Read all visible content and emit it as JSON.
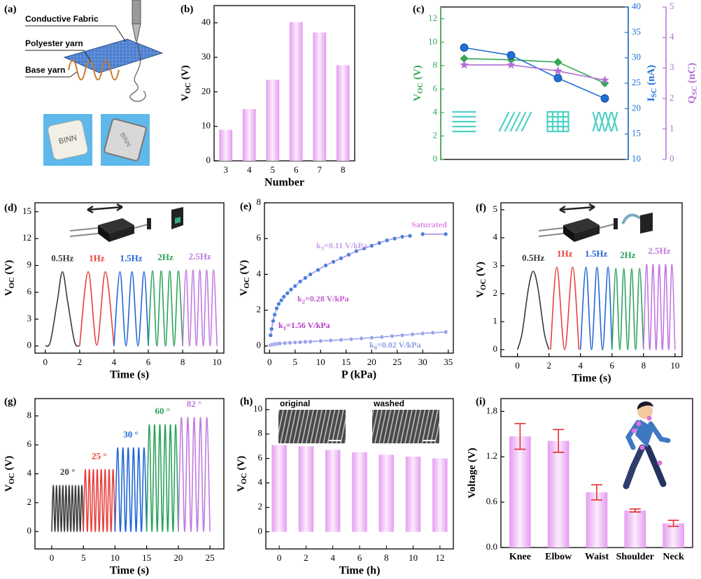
{
  "schematic": {
    "label": "(a)",
    "labels": [
      "Conductive Fabric",
      "Polyester yarn",
      "Base yarn"
    ],
    "photo_text": "BINN"
  },
  "chart_data": [
    {
      "label": "(b)",
      "type": "bar",
      "categories": [
        "3",
        "4",
        "5",
        "6",
        "7",
        "8"
      ],
      "values": [
        9,
        15,
        23.5,
        40.2,
        37.2,
        27.7
      ],
      "color": "#e49cf0",
      "ylim": [
        0,
        45
      ],
      "yticks": [
        0,
        10,
        20,
        30,
        40
      ],
      "xlabel": "Number",
      "ylabel": [
        "V",
        "OC",
        " (V)"
      ]
    },
    {
      "label": "(c)",
      "type": "line",
      "categories": [
        null,
        null,
        null,
        null
      ],
      "series": [
        {
          "values": [
            8.6,
            8.5,
            8.3,
            6.5
          ],
          "color": "#34a853",
          "marker": "diamond",
          "axis": "y"
        },
        {
          "values": [
            32,
            30.5,
            26,
            22
          ],
          "color": "#1f6fd6",
          "marker": "circle",
          "axis": "y2"
        },
        {
          "values": [
            3.1,
            3.1,
            2.9,
            2.6
          ],
          "color": "#b36ed6",
          "marker": "star",
          "axis": "y3"
        }
      ],
      "ylim": [
        0,
        13
      ],
      "yticks": [
        0,
        2,
        4,
        6,
        8,
        10,
        12
      ],
      "y2lim": [
        10,
        40
      ],
      "y2ticks": [
        10,
        15,
        20,
        25,
        30,
        35,
        40
      ],
      "y3lim": [
        0,
        5
      ],
      "y3ticks": [
        0,
        1,
        2,
        3,
        4,
        5
      ],
      "ylabel": [
        "V",
        "OC",
        " (V)"
      ],
      "y2label": [
        "I",
        "SC",
        " (nA)"
      ],
      "y3label": [
        "Q",
        "SC",
        " (nC)"
      ],
      "pattern_color": "#4fd1c5"
    },
    {
      "label": "(d)",
      "type": "line",
      "xlim": [
        -0.6,
        10.4
      ],
      "xticks": [
        0,
        2,
        4,
        6,
        8,
        10
      ],
      "ylim": [
        -0.8,
        16
      ],
      "yticks": [
        0,
        3,
        6,
        9,
        12,
        15
      ],
      "xlabel": "Time (s)",
      "ylabel": [
        "V",
        "OC",
        " (V)"
      ],
      "series": [
        {
          "name": "0.5Hz",
          "color": "#3a3a3a",
          "x": [
            0,
            0.3,
            0.7,
            1.0,
            1.3,
            1.7,
            2.0
          ],
          "values": [
            0,
            0.5,
            5,
            8.3,
            5,
            0.5,
            0
          ]
        },
        {
          "name": "1Hz",
          "color": "#e8413c",
          "x": [
            2.0,
            2.5,
            3.0,
            3.5,
            4.0
          ],
          "values": [
            0,
            8.3,
            0.1,
            8.3,
            0
          ]
        },
        {
          "name": "1.5Hz",
          "color": "#2166d6",
          "x": [
            4.0,
            4.35,
            4.7,
            5.05,
            5.4,
            5.75,
            6.0
          ],
          "values": [
            0,
            8.3,
            0,
            8.3,
            0,
            8.3,
            0
          ]
        },
        {
          "name": "2Hz",
          "color": "#2aa35a",
          "x": [
            6.0,
            6.25,
            6.5,
            6.75,
            7.0,
            7.25,
            7.5,
            7.75,
            8.0
          ],
          "values": [
            0,
            8.4,
            0,
            8.4,
            0,
            8.4,
            0,
            8.4,
            0
          ]
        },
        {
          "name": "2.5Hz",
          "color": "#c07ae0",
          "x": [
            8.0,
            8.2,
            8.4,
            8.6,
            8.8,
            9.0,
            9.2,
            9.4,
            9.6,
            9.8,
            10.0
          ],
          "values": [
            0,
            8.5,
            0,
            8.5,
            0,
            8.5,
            0,
            8.5,
            0,
            8.5,
            0
          ]
        }
      ]
    },
    {
      "label": "(e)",
      "type": "scatter",
      "xlim": [
        -1,
        36
      ],
      "xticks": [
        0,
        5,
        10,
        15,
        20,
        25,
        30,
        35
      ],
      "ylim": [
        -0.4,
        8
      ],
      "yticks": [
        0,
        2,
        4,
        6,
        8
      ],
      "xlabel": "P (kPa)",
      "ylabel": [
        "V",
        "OC",
        " (V)"
      ],
      "series": [
        {
          "color": "#4a7fd8",
          "line_color": "#a98ae8",
          "x": [
            0.2,
            0.4,
            0.7,
            1.0,
            1.4,
            1.8,
            2.3,
            2.8,
            3.5,
            4.2,
            5,
            6,
            7,
            8,
            9.5,
            11,
            12.5,
            14,
            15.5,
            17,
            18.5,
            20,
            21.5,
            23,
            24.5,
            26,
            27.5,
            null,
            30,
            34.5
          ],
          "values": [
            0.6,
            0.95,
            1.4,
            1.75,
            2.1,
            2.35,
            2.55,
            2.75,
            2.95,
            3.15,
            3.35,
            3.6,
            3.8,
            4.0,
            4.25,
            4.5,
            4.7,
            4.9,
            5.1,
            5.3,
            5.45,
            5.6,
            5.75,
            5.9,
            6.0,
            6.1,
            6.15,
            null,
            6.25,
            6.25
          ]
        },
        {
          "color": "#9aa4ee",
          "line_color": "#8f9de8",
          "x": [
            0.2,
            0.6,
            1,
            1.5,
            2,
            3,
            4,
            5,
            6,
            7,
            8,
            10,
            12,
            14,
            16,
            18,
            20,
            22,
            24,
            26,
            28,
            30,
            32,
            34.5
          ],
          "values": [
            0.05,
            0.08,
            0.1,
            0.12,
            0.14,
            0.16,
            0.18,
            0.2,
            0.21,
            0.23,
            0.24,
            0.28,
            0.31,
            0.34,
            0.38,
            0.42,
            0.46,
            0.5,
            0.55,
            0.6,
            0.65,
            0.7,
            0.74,
            0.78
          ]
        }
      ],
      "annotations": [
        {
          "text": [
            "k",
            "3",
            "=0.11 V/kPa"
          ],
          "color": "#c9a0ee"
        },
        {
          "text": [
            "Saturated"
          ],
          "color": "#e38ae8"
        },
        {
          "text": [
            "k",
            "2",
            "=0.28 V/kPa"
          ],
          "color": "#c45ad0"
        },
        {
          "text": [
            "k",
            "1",
            "=1.56 V/kPa"
          ],
          "color": "#b23cc4"
        },
        {
          "text": [
            "k",
            "0",
            "=0.02 V/kPa"
          ],
          "color": "#8b9ee8"
        }
      ]
    },
    {
      "label": "(f)",
      "type": "line",
      "xlim": [
        -1.05,
        10.45
      ],
      "xticks": [
        0,
        2,
        4,
        6,
        8,
        10
      ],
      "ylim": [
        -0.25,
        5.25
      ],
      "yticks": [
        0,
        1,
        2,
        3,
        4,
        5
      ],
      "xlabel": "Time (s)",
      "ylabel": [
        "V",
        "OC",
        " (V)"
      ],
      "series": [
        {
          "name": "0.5Hz",
          "color": "#3a3a3a",
          "x": [
            0,
            0.3,
            0.7,
            1.0,
            1.3,
            1.7,
            2.0
          ],
          "values": [
            0,
            0.6,
            2.2,
            2.8,
            2.2,
            0.6,
            0
          ]
        },
        {
          "name": "1Hz",
          "color": "#e8413c",
          "x": [
            2.1,
            2.5,
            3.0,
            3.5,
            3.9
          ],
          "values": [
            0,
            2.95,
            0,
            2.95,
            0
          ]
        },
        {
          "name": "1.5Hz",
          "color": "#2166d6",
          "x": [
            4.0,
            4.35,
            4.7,
            5.05,
            5.4,
            5.75,
            6.0
          ],
          "values": [
            0,
            2.95,
            0,
            2.95,
            0,
            2.95,
            0
          ]
        },
        {
          "name": "2Hz",
          "color": "#2aa35a",
          "x": [
            6.0,
            6.25,
            6.5,
            6.75,
            7.0,
            7.25,
            7.5,
            7.75,
            8.0
          ],
          "values": [
            0,
            2.9,
            0,
            2.9,
            0,
            2.9,
            0,
            2.9,
            0
          ]
        },
        {
          "name": "2.5Hz",
          "color": "#c07ae0",
          "x": [
            8.0,
            8.2,
            8.4,
            8.6,
            8.8,
            9.0,
            9.2,
            9.4,
            9.6,
            9.8,
            10.0
          ],
          "values": [
            0,
            3.05,
            0,
            3.05,
            0,
            3.05,
            0,
            3.05,
            0,
            3.05,
            0
          ]
        }
      ]
    },
    {
      "label": "(g)",
      "type": "line",
      "xlim": [
        -2.65,
        27.2
      ],
      "xticks": [
        0,
        5,
        10,
        15,
        20,
        25
      ],
      "ylim": [
        -1.2,
        9.2
      ],
      "yticks": [
        0,
        2,
        4,
        6,
        8
      ],
      "xlabel": "Time (s)",
      "ylabel": [
        "V",
        "OC",
        " (V)"
      ],
      "series": [
        {
          "name": "20 °",
          "color": "#3a3a3a",
          "x": [
            0,
            0.25,
            0.5,
            0.75,
            1,
            1.25,
            1.5,
            1.75,
            2,
            2.25,
            2.5,
            2.75,
            3,
            3.25,
            3.5,
            3.75,
            4,
            4.25,
            4.5,
            4.75,
            5
          ],
          "values": [
            0,
            3.2,
            0,
            3.2,
            0,
            3.2,
            0,
            3.2,
            0,
            3.2,
            0,
            3.2,
            0,
            3.2,
            0,
            3.2,
            0,
            3.2,
            0,
            3.2,
            0
          ]
        },
        {
          "name": "25 °",
          "color": "#e8413c",
          "x": [
            5,
            5.3125,
            5.625,
            5.9375,
            6.25,
            6.5625,
            6.875,
            7.1875,
            7.5,
            7.8125,
            8.125,
            8.4375,
            8.75,
            9.0625,
            9.375,
            9.6875,
            10
          ],
          "values": [
            0,
            4.3,
            0,
            4.3,
            0,
            4.3,
            0,
            4.3,
            0,
            4.3,
            0,
            4.3,
            0,
            4.3,
            0,
            4.3,
            0
          ]
        },
        {
          "name": "30 °",
          "color": "#2166d6",
          "x": [
            10,
            10.42,
            10.83,
            11.25,
            11.67,
            12.08,
            12.5,
            12.92,
            13.33,
            13.75,
            14.17,
            14.58,
            15
          ],
          "values": [
            0,
            5.8,
            0,
            5.8,
            0,
            5.8,
            0,
            5.8,
            0,
            5.8,
            0,
            5.8,
            0
          ]
        },
        {
          "name": "60 °",
          "color": "#2aa35a",
          "x": [
            15,
            15.42,
            15.83,
            16.25,
            16.67,
            17.08,
            17.5,
            17.92,
            18.33,
            18.75,
            19.17,
            19.58,
            20
          ],
          "values": [
            0,
            7.4,
            0,
            7.4,
            0,
            7.4,
            0,
            7.4,
            0,
            7.4,
            0,
            7.4,
            0
          ]
        },
        {
          "name": "82 °",
          "color": "#c07ae0",
          "x": [
            20,
            20.5,
            21,
            21.5,
            22,
            22.5,
            23,
            23.5,
            24,
            24.5,
            25
          ],
          "values": [
            0,
            7.9,
            0,
            7.9,
            0,
            7.9,
            0,
            7.9,
            0,
            7.9,
            0
          ]
        }
      ]
    },
    {
      "label": "(h)",
      "type": "bar",
      "categories": [
        "0",
        "2",
        "4",
        "6",
        "8",
        "10",
        "12"
      ],
      "values": [
        7.1,
        7.0,
        6.7,
        6.5,
        6.3,
        6.15,
        6.0
      ],
      "color": "#e49cf0",
      "ylim": [
        -1.4,
        10.9
      ],
      "yticks": [
        0,
        2,
        4,
        6,
        8,
        10
      ],
      "xlabel": "Time (h)",
      "ylabel": [
        "V",
        "OC",
        " (V)"
      ],
      "insets": [
        "original",
        "washed"
      ]
    },
    {
      "label": "(i)",
      "type": "bar",
      "categories": [
        "Knee",
        "Elbow",
        "Waist",
        "Shoulder",
        "Neck"
      ],
      "values": [
        1.47,
        1.41,
        0.73,
        0.49,
        0.32
      ],
      "errors": [
        0.17,
        0.15,
        0.1,
        0.02,
        0.04
      ],
      "error_color": "#e03030",
      "color": "#e49cf0",
      "ylim": [
        0,
        1.97
      ],
      "yticks": [
        {
          "value": 0,
          "label": "0.0"
        },
        0.6,
        1.2,
        1.8
      ],
      "ylabel": [
        "Voltage (V)"
      ]
    }
  ]
}
